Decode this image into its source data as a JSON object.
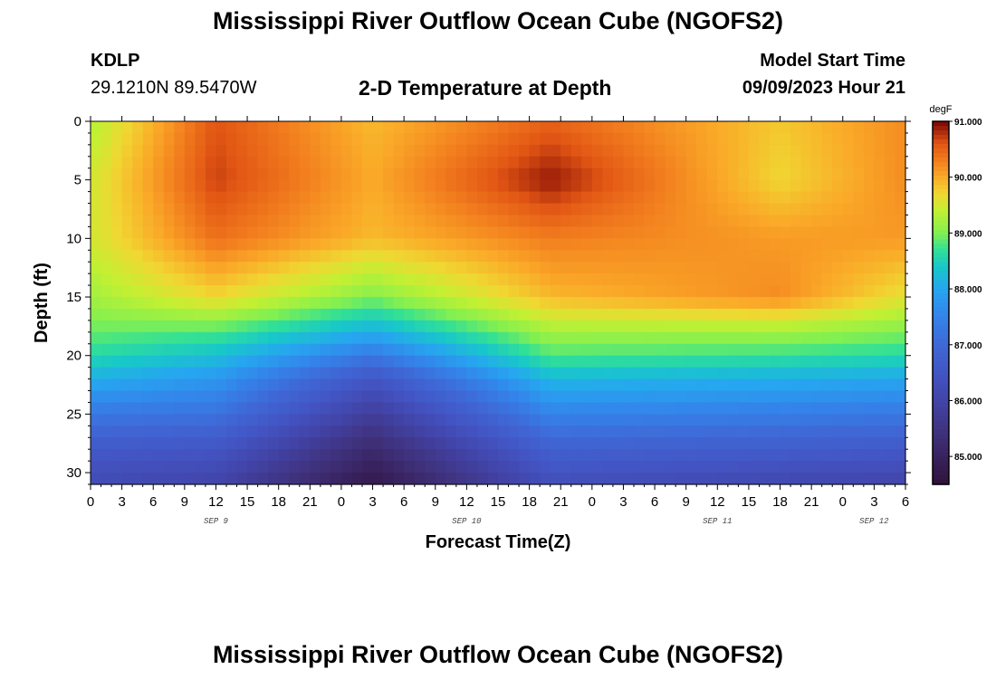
{
  "page": {
    "title": "Mississippi River Outflow Ocean Cube (NGOFS2)",
    "title_repeat": "Mississippi River Outflow Ocean Cube (NGOFS2)",
    "station_id": "KDLP",
    "coordinates": "29.1210N  89.5470W",
    "plot_title": "2-D Temperature at Depth",
    "model_start_label": "Model Start Time",
    "model_start_value": "09/09/2023 Hour 21"
  },
  "chart_data": {
    "type": "heatmap",
    "title": "2-D Temperature at Depth",
    "xlabel": "Forecast Time(Z)",
    "ylabel": "Depth (ft)",
    "x_range_hours": [
      0,
      78
    ],
    "y_range_ft": [
      0,
      31
    ],
    "y_ticks": [
      0,
      5,
      10,
      15,
      20,
      25,
      30
    ],
    "x_tick_labels": [
      "0",
      "3",
      "6",
      "9",
      "12",
      "15",
      "18",
      "21",
      "0",
      "3",
      "6",
      "9",
      "12",
      "15",
      "18",
      "21",
      "0",
      "3",
      "6",
      "9",
      "12",
      "15",
      "18",
      "21",
      "0",
      "3",
      "6"
    ],
    "date_labels": [
      "SEP 9",
      "SEP 10",
      "SEP 11",
      "SEP 12"
    ],
    "date_label_hours": [
      12,
      36,
      60,
      75
    ],
    "colorbar": {
      "unit": "degF",
      "min": 84.5,
      "max": 91.0,
      "tick_values": [
        91.0,
        90.0,
        89.0,
        88.0,
        87.0,
        86.0,
        85.0
      ],
      "tick_labels": [
        "91.000",
        "90.000",
        "89.000",
        "88.000",
        "87.000",
        "86.000",
        "85.000"
      ]
    },
    "depth_profile": {
      "depth_ft": [
        0,
        5,
        10,
        15,
        18,
        20,
        22,
        25,
        28,
        31
      ],
      "temp_at_hour_0": [
        89.3,
        89.5,
        89.5,
        89.2,
        88.9,
        88.6,
        88.1,
        87.3,
        86.6,
        86.2
      ],
      "temp_at_hour_12": [
        90.6,
        90.7,
        90.4,
        89.7,
        88.8,
        88.3,
        87.8,
        87.2,
        86.5,
        86.0
      ],
      "temp_at_hour_27": [
        89.9,
        90.0,
        89.9,
        89.0,
        88.1,
        87.3,
        86.5,
        85.8,
        85.2,
        84.7
      ],
      "temp_at_hour_44": [
        90.5,
        90.9,
        90.3,
        89.9,
        89.2,
        88.8,
        88.2,
        87.5,
        86.8,
        86.3
      ],
      "temp_at_hour_66": [
        89.8,
        89.7,
        90.1,
        90.2,
        89.2,
        88.7,
        88.1,
        87.4,
        86.7,
        86.1
      ],
      "temp_at_hour_78": [
        90.2,
        90.2,
        90.1,
        89.6,
        89.0,
        88.6,
        88.0,
        87.3,
        86.6,
        86.0
      ]
    }
  }
}
